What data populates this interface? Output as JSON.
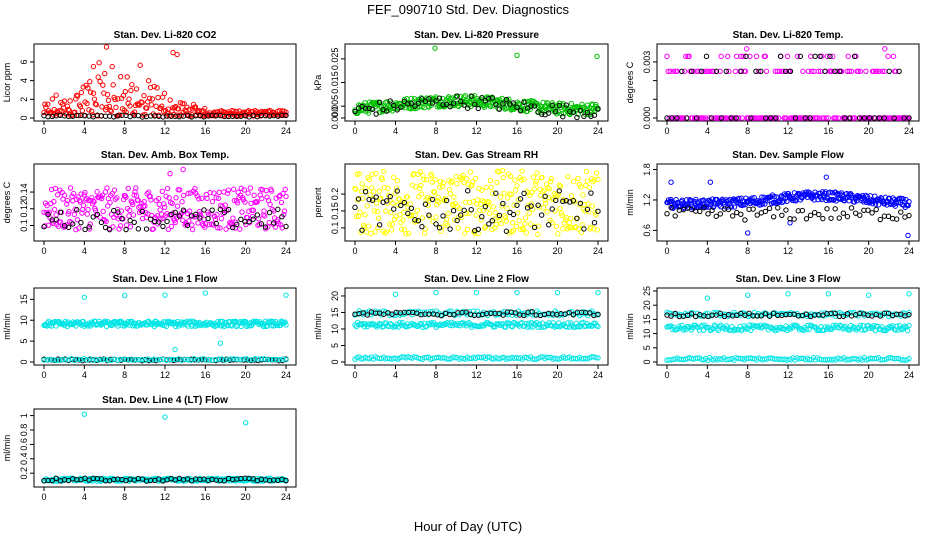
{
  "figure": {
    "title": "FEF_090710  Std. Dev. Diagnostics",
    "xlabel": "Hour of Day (UTC)"
  },
  "chart_data": [
    {
      "type": "scatter",
      "title": "Stan. Dev. Li-820 CO2",
      "ylabel": "Licor ppm",
      "xticks": [
        0,
        4,
        8,
        12,
        16,
        20,
        24
      ],
      "yticks": [
        0,
        2,
        4,
        6
      ],
      "xlim": [
        0,
        24
      ],
      "ylim": [
        0,
        7.6
      ],
      "series": [
        {
          "color": "#ff0000",
          "gen": {
            "kind": "decay",
            "lo": 0.2,
            "hi": 7.0,
            "peak": 7,
            "center": 7,
            "width": 5,
            "count": 260,
            "outliers": [
              [
                6.2,
                7.6
              ],
              [
                12.8,
                7.0
              ],
              [
                13.2,
                6.8
              ],
              [
                4.9,
                5.5
              ]
            ]
          }
        },
        {
          "color": "#000000",
          "gen": {
            "kind": "band",
            "lo": 0.1,
            "hi": 0.3,
            "count": 60
          }
        }
      ]
    },
    {
      "type": "scatter",
      "title": "Stan. Dev. Li-820 Pressure",
      "ylabel": "kPa",
      "xticks": [
        0,
        4,
        8,
        12,
        16,
        20,
        24
      ],
      "yticks": [
        0.0,
        0.005,
        0.015,
        0.025
      ],
      "ytick_labels": [
        "0.000",
        "0.005",
        "0.015",
        "0.025"
      ],
      "xlim": [
        0,
        24
      ],
      "ylim": [
        0,
        0.03
      ],
      "series": [
        {
          "color": "#00c000",
          "gen": {
            "kind": "wave",
            "lo": 0.002,
            "hi": 0.009,
            "count": 320,
            "outliers": [
              [
                7.9,
                0.0295
              ],
              [
                16.0,
                0.0265
              ],
              [
                23.9,
                0.026
              ]
            ]
          }
        },
        {
          "color": "#000000",
          "gen": {
            "kind": "wave",
            "lo": 0.001,
            "hi": 0.009,
            "count": 70
          }
        }
      ]
    },
    {
      "type": "scatter",
      "title": "Stan. Dev. Li-820 Temp.",
      "ylabel": "degrees C",
      "xticks": [
        0,
        4,
        8,
        12,
        16,
        20,
        24
      ],
      "yticks": [
        0,
        0.001,
        0.002,
        0.003
      ],
      "ytick_labels": [
        "0.000",
        "",
        "",
        "0.003"
      ],
      "xlim": [
        0,
        24
      ],
      "ylim": [
        0,
        0.0038
      ],
      "series": [
        {
          "color": "#ff00ff",
          "gen": {
            "kind": "levels",
            "levels": [
              0,
              0.0025,
              0.0033
            ],
            "weights": [
              0.6,
              0.3,
              0.1
            ],
            "count": 220,
            "outliers": [
              [
                7.9,
                0.0037
              ],
              [
                21.6,
                0.0037
              ]
            ]
          }
        },
        {
          "color": "#000000",
          "gen": {
            "kind": "levels",
            "levels": [
              0,
              0.0025,
              0.0033
            ],
            "weights": [
              0.6,
              0.3,
              0.1
            ],
            "count": 50
          }
        }
      ]
    },
    {
      "type": "scatter",
      "title": "Stan. Dev. Amb. Box Temp.",
      "ylabel": "degrees C",
      "xticks": [
        0,
        4,
        8,
        12,
        16,
        20,
        24
      ],
      "yticks": [
        0.1,
        0.12,
        0.14
      ],
      "xlim": [
        0,
        24
      ],
      "ylim": [
        0.085,
        0.17
      ],
      "series": [
        {
          "color": "#ff00ff",
          "gen": {
            "kind": "band",
            "lo": 0.095,
            "hi": 0.145,
            "count": 320,
            "outliers": [
              [
                12.5,
                0.162
              ],
              [
                13.8,
                0.167
              ]
            ]
          }
        },
        {
          "color": "#000000",
          "gen": {
            "kind": "band",
            "lo": 0.095,
            "hi": 0.12,
            "count": 60
          }
        }
      ]
    },
    {
      "type": "scatter",
      "title": "Stan. Dev. Gas Stream RH",
      "ylabel": "percent",
      "xticks": [
        0,
        4,
        8,
        12,
        16,
        20,
        24
      ],
      "yticks": [
        0.1,
        0.15,
        0.2
      ],
      "xlim": [
        0,
        24
      ],
      "ylim": [
        0.07,
        0.28
      ],
      "series": [
        {
          "color": "#ffff00",
          "gen": {
            "kind": "band",
            "lo": 0.08,
            "hi": 0.27,
            "count": 340
          }
        },
        {
          "color": "#000000",
          "gen": {
            "kind": "band",
            "lo": 0.09,
            "hi": 0.21,
            "count": 70
          }
        }
      ]
    },
    {
      "type": "scatter",
      "title": "Stan. Dev. Sample Flow",
      "ylabel": "ml/min",
      "xticks": [
        0,
        4,
        8,
        12,
        16,
        20,
        24
      ],
      "yticks": [
        0.6,
        1.2,
        1.8
      ],
      "xlim": [
        0,
        24
      ],
      "ylim": [
        0.45,
        1.85
      ],
      "series": [
        {
          "color": "#0000ff",
          "gen": {
            "kind": "hump",
            "lo": 1.0,
            "hi": 1.35,
            "count": 320,
            "outliers": [
              [
                0.4,
                1.55
              ],
              [
                4.3,
                1.55
              ],
              [
                8.0,
                0.55
              ],
              [
                12.2,
                0.75
              ],
              [
                15.8,
                1.65
              ],
              [
                23.9,
                0.5
              ]
            ]
          }
        },
        {
          "color": "#000000",
          "gen": {
            "kind": "band",
            "lo": 0.8,
            "hi": 1.05,
            "count": 60
          }
        }
      ]
    },
    {
      "type": "scatter",
      "title": "Stan. Dev. Line 1 Flow",
      "ylabel": "ml/min",
      "xticks": [
        0,
        4,
        8,
        12,
        16,
        20,
        24
      ],
      "yticks": [
        0,
        5,
        10,
        15
      ],
      "xlim": [
        0,
        24
      ],
      "ylim": [
        0,
        17
      ],
      "series": [
        {
          "color": "#00e5e5",
          "gen": {
            "kind": "band",
            "lo": 8.5,
            "hi": 9.8,
            "count": 260,
            "outliers": [
              [
                4.0,
                15.5
              ],
              [
                8.0,
                15.9
              ],
              [
                12.0,
                16.0
              ],
              [
                16.0,
                16.5
              ],
              [
                24.0,
                16.0
              ],
              [
                13.0,
                3.0
              ],
              [
                17.5,
                4.5
              ]
            ]
          }
        },
        {
          "color": "#000000",
          "gen": {
            "kind": "band",
            "lo": 0.3,
            "hi": 0.7,
            "count": 70
          }
        },
        {
          "color": "#00e5e5",
          "gen": {
            "kind": "band",
            "lo": 0.4,
            "hi": 0.8,
            "count": 80
          }
        }
      ]
    },
    {
      "type": "scatter",
      "title": "Stan. Dev. Line 2 Flow",
      "ylabel": "ml/min",
      "xticks": [
        0,
        4,
        8,
        12,
        16,
        20,
        24
      ],
      "yticks": [
        0,
        5,
        10,
        15,
        20
      ],
      "xlim": [
        0,
        24
      ],
      "ylim": [
        0,
        21.5
      ],
      "series": [
        {
          "color": "#00e5e5",
          "gen": {
            "kind": "band",
            "lo": 10.5,
            "hi": 12.0,
            "count": 180
          }
        },
        {
          "color": "#00e5e5",
          "gen": {
            "kind": "band",
            "lo": 14.0,
            "hi": 15.5,
            "count": 120,
            "outliers": [
              [
                4.0,
                20.5
              ],
              [
                8.0,
                21.0
              ],
              [
                12.0,
                21.0
              ],
              [
                16.0,
                21.0
              ],
              [
                20.0,
                21.0
              ],
              [
                24.0,
                21.0
              ]
            ]
          }
        },
        {
          "color": "#000000",
          "gen": {
            "kind": "band",
            "lo": 14.0,
            "hi": 15.2,
            "count": 60
          }
        },
        {
          "color": "#00e5e5",
          "gen": {
            "kind": "band",
            "lo": 0.8,
            "hi": 1.6,
            "count": 120
          }
        }
      ]
    },
    {
      "type": "scatter",
      "title": "Stan. Dev. Line 3 Flow",
      "ylabel": "ml/min",
      "xticks": [
        0,
        4,
        8,
        12,
        16,
        20,
        24
      ],
      "yticks": [
        0,
        5,
        10,
        15,
        20,
        25
      ],
      "xlim": [
        0,
        24
      ],
      "ylim": [
        0,
        25
      ],
      "series": [
        {
          "color": "#00e5e5",
          "gen": {
            "kind": "band",
            "lo": 11.0,
            "hi": 13.0,
            "count": 180
          }
        },
        {
          "color": "#00e5e5",
          "gen": {
            "kind": "band",
            "lo": 16.0,
            "hi": 17.5,
            "count": 120,
            "outliers": [
              [
                4.0,
                22.5
              ],
              [
                8.0,
                23.5
              ],
              [
                12.0,
                24.0
              ],
              [
                16.0,
                24.0
              ],
              [
                20.0,
                23.5
              ],
              [
                24.0,
                24.0
              ]
            ]
          }
        },
        {
          "color": "#000000",
          "gen": {
            "kind": "band",
            "lo": 16.0,
            "hi": 17.2,
            "count": 60
          }
        },
        {
          "color": "#00e5e5",
          "gen": {
            "kind": "band",
            "lo": 0.6,
            "hi": 1.6,
            "count": 120
          }
        }
      ]
    },
    {
      "type": "scatter",
      "title": "Stan. Dev. Line 4 (LT) Flow",
      "ylabel": "ml/min",
      "xticks": [
        0,
        4,
        8,
        12,
        16,
        20,
        24
      ],
      "yticks": [
        0.2,
        0.4,
        0.6,
        0.8,
        1.0
      ],
      "xlim": [
        0,
        24
      ],
      "ylim": [
        0.05,
        1.05
      ],
      "series": [
        {
          "color": "#00e5e5",
          "gen": {
            "kind": "band",
            "lo": 0.09,
            "hi": 0.13,
            "count": 260,
            "outliers": [
              [
                4.0,
                1.02
              ],
              [
                12.0,
                0.98
              ],
              [
                20.0,
                0.9
              ]
            ]
          }
        },
        {
          "color": "#000000",
          "gen": {
            "kind": "band",
            "lo": 0.09,
            "hi": 0.13,
            "count": 60
          }
        }
      ]
    }
  ]
}
